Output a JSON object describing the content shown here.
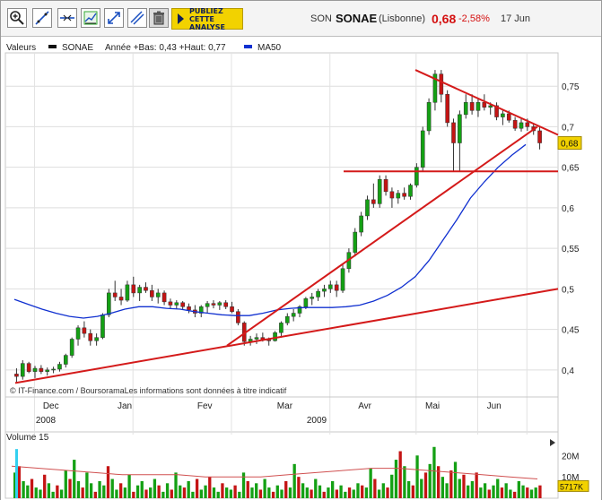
{
  "toolbar": {
    "tools": [
      {
        "name": "zoom-in",
        "icon": "magnifier-plus-icon"
      },
      {
        "name": "draw-line",
        "icon": "diagonal-line-icon"
      },
      {
        "name": "horizontal-line",
        "icon": "horizontal-line-icon"
      },
      {
        "name": "indicators",
        "icon": "chart-settings-icon"
      },
      {
        "name": "fullscreen",
        "icon": "expand-arrows-icon"
      },
      {
        "name": "parallel-lines",
        "icon": "parallel-lines-icon"
      },
      {
        "name": "delete",
        "icon": "trash-icon"
      }
    ],
    "promo_line1": "PUBLIEZ",
    "promo_line2": "CETTE",
    "promo_line3": "ANALYSE"
  },
  "quote": {
    "code": "SON",
    "name": "SONAE",
    "market": "(Lisbonne)",
    "price": "0,68",
    "change": "-2,58%",
    "date": "17 Jun"
  },
  "legend": {
    "valeurs": "Valeurs",
    "series_name": "SONAE",
    "stats": "Année +Bas: 0,43 +Haut: 0,77",
    "ma_name": "MA50"
  },
  "watermark": "© IT-Finance.com / BoursoramaLes informations sont données à titre indicatif",
  "colors": {
    "up": "#14a014",
    "down": "#c41414",
    "ma": "#1030d0",
    "trend": "#d41a1a",
    "volume_ma": "#d05050"
  },
  "chart_data": [
    {
      "type": "candlestick",
      "title": "SONAE",
      "ylim": [
        0.37,
        0.79
      ],
      "yticks": [
        0.4,
        0.45,
        0.5,
        0.55,
        0.6,
        0.65,
        0.7,
        0.75
      ],
      "ytick_labels": [
        "0,4",
        "0,45",
        "0,5",
        "0,55",
        "0,6",
        "0,65",
        "0,7",
        "0,75"
      ],
      "xtick_labels": [
        "Dec",
        "Jan",
        "Fev",
        "Mar",
        "Avr",
        "Mai",
        "Jun"
      ],
      "year_labels": [
        "2008",
        "2009"
      ],
      "last_value_label": "0,68",
      "grid": true,
      "ohlc": [
        [
          0.395,
          0.402,
          0.385,
          0.392
        ],
        [
          0.392,
          0.412,
          0.388,
          0.408
        ],
        [
          0.408,
          0.41,
          0.396,
          0.398
        ],
        [
          0.398,
          0.405,
          0.39,
          0.402
        ],
        [
          0.402,
          0.406,
          0.395,
          0.398
        ],
        [
          0.398,
          0.403,
          0.393,
          0.4
        ],
        [
          0.4,
          0.404,
          0.396,
          0.401
        ],
        [
          0.401,
          0.41,
          0.398,
          0.407
        ],
        [
          0.407,
          0.42,
          0.403,
          0.418
        ],
        [
          0.418,
          0.44,
          0.415,
          0.438
        ],
        [
          0.438,
          0.455,
          0.43,
          0.452
        ],
        [
          0.452,
          0.46,
          0.44,
          0.445
        ],
        [
          0.445,
          0.45,
          0.43,
          0.436
        ],
        [
          0.436,
          0.445,
          0.43,
          0.44
        ],
        [
          0.44,
          0.47,
          0.438,
          0.468
        ],
        [
          0.468,
          0.5,
          0.465,
          0.495
        ],
        [
          0.495,
          0.51,
          0.485,
          0.49
        ],
        [
          0.49,
          0.5,
          0.48,
          0.486
        ],
        [
          0.486,
          0.51,
          0.484,
          0.505
        ],
        [
          0.505,
          0.515,
          0.49,
          0.495
        ],
        [
          0.495,
          0.505,
          0.485,
          0.502
        ],
        [
          0.502,
          0.508,
          0.495,
          0.498
        ],
        [
          0.498,
          0.505,
          0.485,
          0.49
        ],
        [
          0.49,
          0.5,
          0.482,
          0.495
        ],
        [
          0.495,
          0.498,
          0.48,
          0.484
        ],
        [
          0.484,
          0.488,
          0.476,
          0.48
        ],
        [
          0.48,
          0.486,
          0.475,
          0.483
        ],
        [
          0.483,
          0.485,
          0.474,
          0.478
        ],
        [
          0.478,
          0.482,
          0.47,
          0.474
        ],
        [
          0.474,
          0.48,
          0.465,
          0.47
        ],
        [
          0.47,
          0.48,
          0.465,
          0.478
        ],
        [
          0.478,
          0.485,
          0.47,
          0.482
        ],
        [
          0.482,
          0.486,
          0.476,
          0.48
        ],
        [
          0.48,
          0.485,
          0.474,
          0.483
        ],
        [
          0.483,
          0.486,
          0.475,
          0.478
        ],
        [
          0.478,
          0.484,
          0.47,
          0.472
        ],
        [
          0.472,
          0.475,
          0.455,
          0.458
        ],
        [
          0.458,
          0.46,
          0.43,
          0.435
        ],
        [
          0.435,
          0.442,
          0.43,
          0.438
        ],
        [
          0.438,
          0.445,
          0.432,
          0.44
        ],
        [
          0.44,
          0.446,
          0.435,
          0.437
        ],
        [
          0.437,
          0.44,
          0.43,
          0.436
        ],
        [
          0.436,
          0.448,
          0.435,
          0.446
        ],
        [
          0.446,
          0.46,
          0.44,
          0.458
        ],
        [
          0.458,
          0.47,
          0.455,
          0.466
        ],
        [
          0.466,
          0.475,
          0.46,
          0.47
        ],
        [
          0.47,
          0.48,
          0.465,
          0.478
        ],
        [
          0.478,
          0.49,
          0.475,
          0.488
        ],
        [
          0.488,
          0.495,
          0.48,
          0.49
        ],
        [
          0.49,
          0.5,
          0.485,
          0.497
        ],
        [
          0.497,
          0.505,
          0.49,
          0.5
        ],
        [
          0.5,
          0.51,
          0.495,
          0.505
        ],
        [
          0.505,
          0.51,
          0.49,
          0.498
        ],
        [
          0.498,
          0.53,
          0.495,
          0.525
        ],
        [
          0.525,
          0.55,
          0.52,
          0.545
        ],
        [
          0.545,
          0.575,
          0.54,
          0.57
        ],
        [
          0.57,
          0.595,
          0.565,
          0.59
        ],
        [
          0.59,
          0.615,
          0.585,
          0.61
        ],
        [
          0.61,
          0.63,
          0.6,
          0.605
        ],
        [
          0.605,
          0.64,
          0.6,
          0.635
        ],
        [
          0.635,
          0.64,
          0.615,
          0.62
        ],
        [
          0.62,
          0.625,
          0.6,
          0.612
        ],
        [
          0.612,
          0.622,
          0.605,
          0.618
        ],
        [
          0.618,
          0.625,
          0.61,
          0.614
        ],
        [
          0.614,
          0.63,
          0.61,
          0.628
        ],
        [
          0.628,
          0.655,
          0.625,
          0.65
        ],
        [
          0.65,
          0.7,
          0.645,
          0.695
        ],
        [
          0.695,
          0.735,
          0.69,
          0.73
        ],
        [
          0.73,
          0.77,
          0.72,
          0.765
        ],
        [
          0.765,
          0.77,
          0.73,
          0.74
        ],
        [
          0.74,
          0.745,
          0.7,
          0.705
        ],
        [
          0.705,
          0.71,
          0.645,
          0.68
        ],
        [
          0.68,
          0.72,
          0.645,
          0.715
        ],
        [
          0.715,
          0.74,
          0.71,
          0.73
        ],
        [
          0.73,
          0.74,
          0.715,
          0.72
        ],
        [
          0.72,
          0.735,
          0.712,
          0.73
        ],
        [
          0.73,
          0.74,
          0.72,
          0.724
        ],
        [
          0.724,
          0.73,
          0.715,
          0.726
        ],
        [
          0.726,
          0.73,
          0.708,
          0.712
        ],
        [
          0.712,
          0.72,
          0.702,
          0.716
        ],
        [
          0.716,
          0.72,
          0.705,
          0.708
        ],
        [
          0.708,
          0.712,
          0.695,
          0.698
        ],
        [
          0.698,
          0.71,
          0.694,
          0.705
        ],
        [
          0.705,
          0.71,
          0.695,
          0.7
        ],
        [
          0.7,
          0.704,
          0.69,
          0.695
        ],
        [
          0.695,
          0.7,
          0.672,
          0.68
        ]
      ],
      "ma50": [
        0.487,
        0.481,
        0.475,
        0.47,
        0.466,
        0.464,
        0.466,
        0.47,
        0.475,
        0.478,
        0.478,
        0.476,
        0.475,
        0.472,
        0.47,
        0.468,
        0.467,
        0.467,
        0.47,
        0.474,
        0.476,
        0.477,
        0.477,
        0.477,
        0.478,
        0.48,
        0.485,
        0.492,
        0.502,
        0.515,
        0.535,
        0.56,
        0.585,
        0.612,
        0.632,
        0.65,
        0.665,
        0.678
      ],
      "support_line": [
        [
          0.384,
          0.5
        ]
      ],
      "uptrend_line": [
        0.43,
        0.7
      ],
      "downtrend_line": [
        0.77,
        0.69
      ],
      "resistance_level": 0.645
    },
    {
      "type": "bar",
      "title": "Volume 15",
      "ytick_labels": [
        "20M",
        "10M"
      ],
      "last_value_label": "5717K",
      "values_m": [
        12,
        15,
        8,
        6,
        9,
        5,
        4,
        11,
        7,
        3,
        6,
        4,
        13,
        9,
        18,
        8,
        5,
        12,
        7,
        3,
        8,
        6,
        15,
        9,
        4,
        7,
        5,
        11,
        3,
        6,
        8,
        4,
        5,
        9,
        6,
        3,
        7,
        4,
        12,
        6,
        5,
        8,
        3,
        9,
        4,
        6,
        10,
        5,
        3,
        7,
        5,
        4,
        6,
        3,
        12,
        8,
        5,
        7,
        4,
        9,
        5,
        3,
        6,
        4,
        8,
        5,
        16,
        10,
        7,
        5,
        4,
        9,
        6,
        3,
        5,
        8,
        4,
        6,
        3,
        5,
        4,
        7,
        6,
        5,
        14,
        9,
        4,
        7,
        5,
        11,
        18,
        22,
        15,
        8,
        6,
        20,
        9,
        12,
        16,
        24,
        15,
        10,
        7,
        13,
        17,
        9,
        11,
        6,
        8,
        12,
        5,
        7,
        4,
        6,
        9,
        5,
        7,
        4,
        3,
        8,
        6,
        5,
        4,
        5,
        6
      ],
      "ma": [
        15,
        14,
        13,
        12,
        11,
        11,
        11,
        10,
        10,
        10,
        11,
        12,
        13,
        14,
        14,
        13,
        12,
        11,
        10,
        9
      ]
    }
  ]
}
